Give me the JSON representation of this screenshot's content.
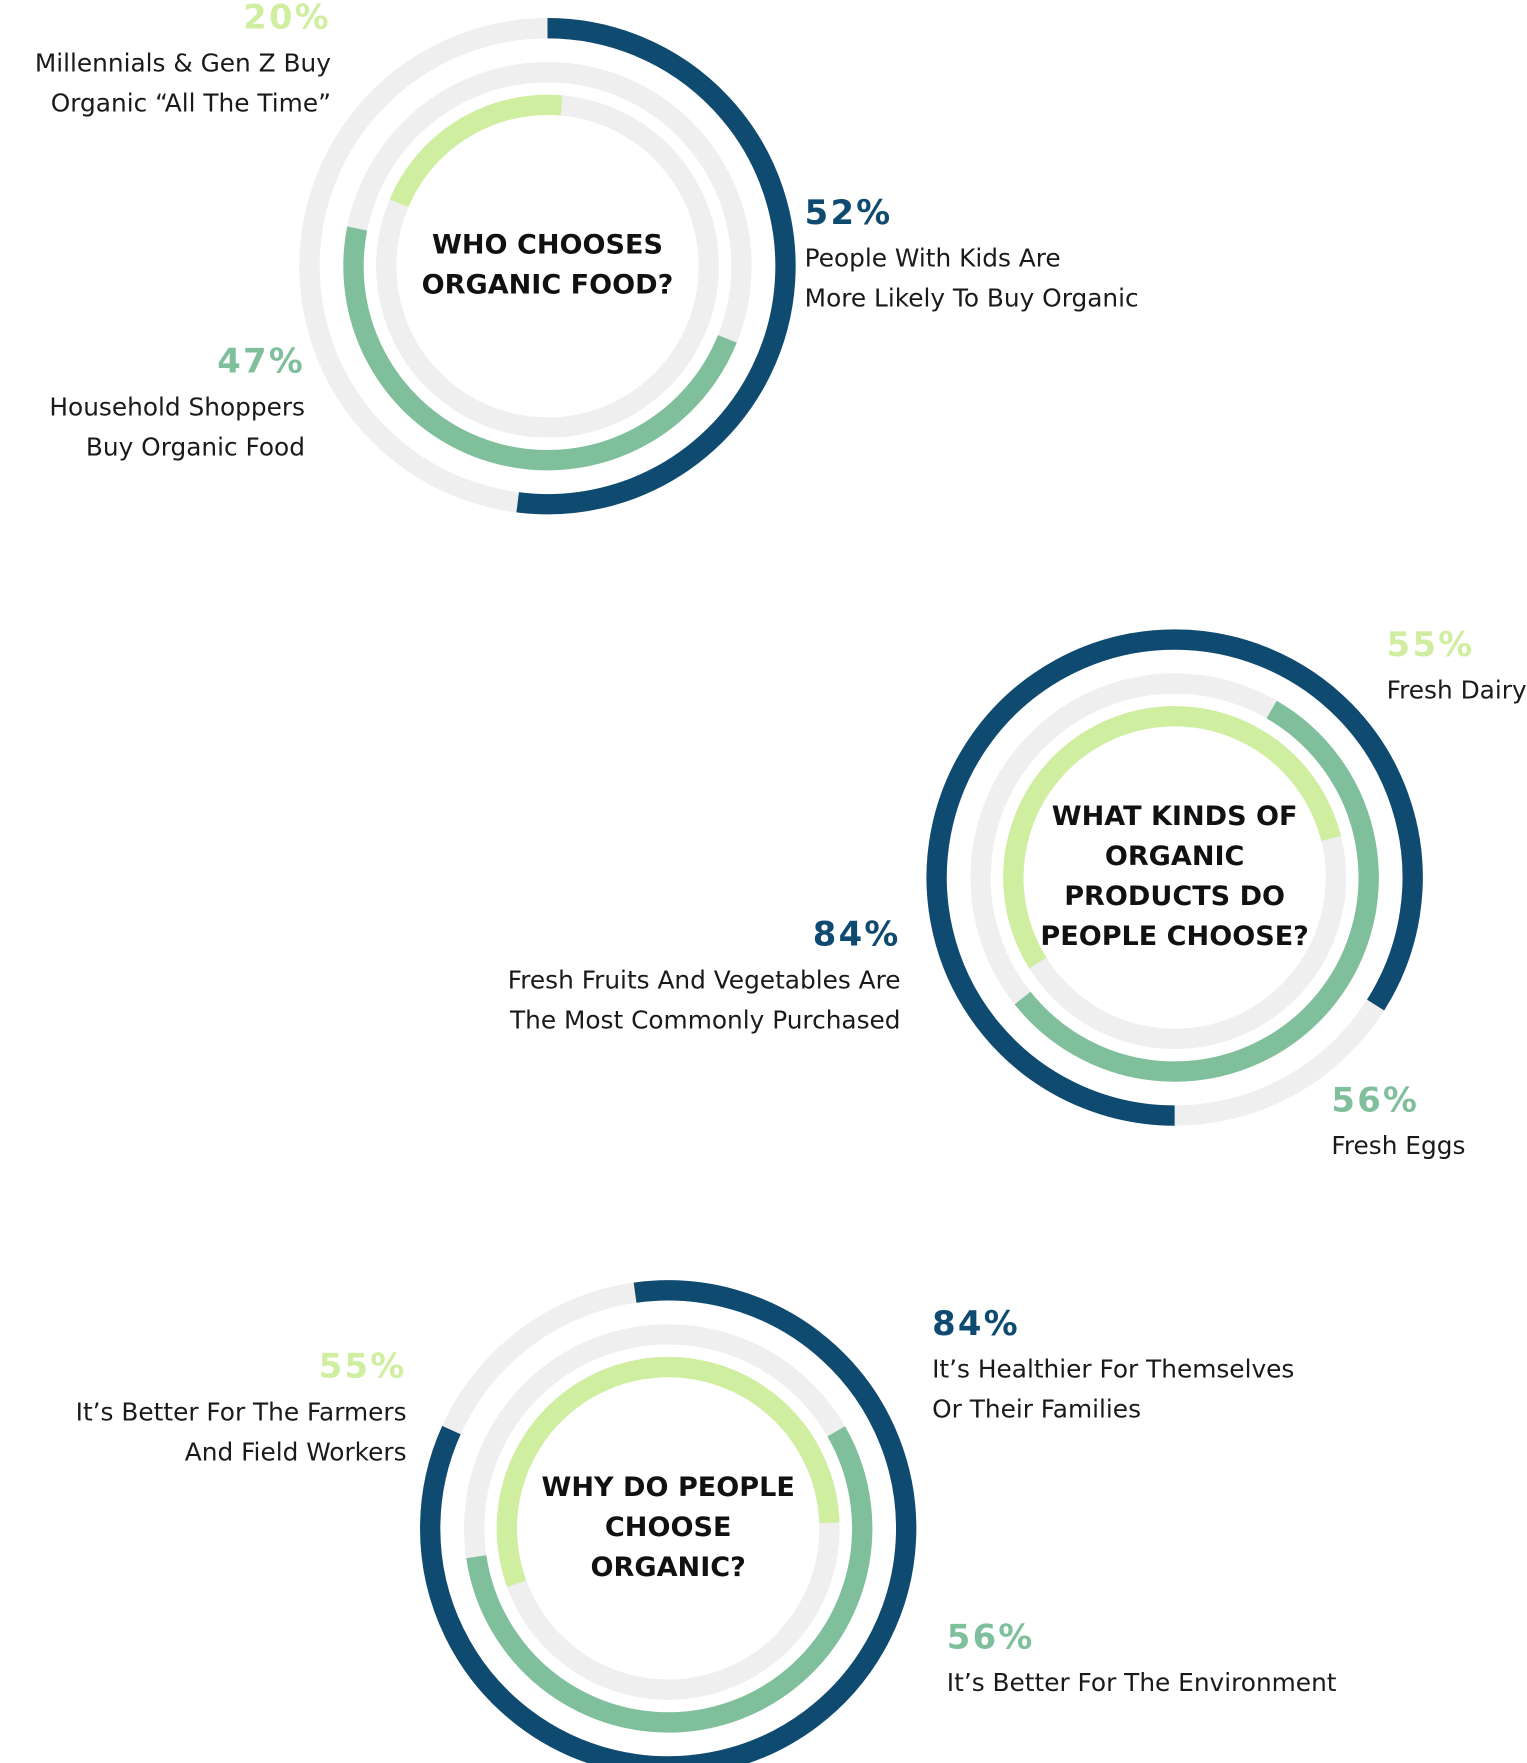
{
  "chart_data": [
    {
      "type": "radial",
      "title": [
        "WHO CHOOSES",
        "ORGANIC FOOD?"
      ],
      "ylim": [
        0,
        100
      ],
      "series": [
        {
          "name": [
            "People With Kids Are",
            "More Likely To Buy Organic"
          ],
          "color": "#0f4a70",
          "values": [
            52
          ],
          "value_labels": [
            "52%"
          ]
        },
        {
          "name": [
            "Household Shoppers",
            "Buy Organic Food"
          ],
          "color": "#7fbf9b",
          "values": [
            47
          ],
          "value_labels": [
            "47%"
          ]
        },
        {
          "name": [
            "Millennials & Gen Z Buy",
            "Organic “All The Time”"
          ],
          "color": "#cfeea0",
          "values": [
            20
          ],
          "value_labels": [
            "20%"
          ]
        }
      ]
    },
    {
      "type": "radial",
      "title": [
        "WHAT KINDS OF",
        "ORGANIC",
        "PRODUCTS DO",
        "PEOPLE CHOOSE?"
      ],
      "ylim": [
        0,
        100
      ],
      "series": [
        {
          "name": [
            "Fresh Fruits And Vegetables Are",
            "The Most Commonly Purchased"
          ],
          "color": "#0f4a70",
          "values": [
            84
          ],
          "value_labels": [
            "84%"
          ]
        },
        {
          "name": [
            "Fresh Eggs"
          ],
          "color": "#7fbf9b",
          "values": [
            56
          ],
          "value_labels": [
            "56%"
          ]
        },
        {
          "name": [
            "Fresh Dairy"
          ],
          "color": "#cfeea0",
          "values": [
            55
          ],
          "value_labels": [
            "55%"
          ]
        }
      ]
    },
    {
      "type": "radial",
      "title": [
        "WHY DO PEOPLE",
        "CHOOSE",
        "ORGANIC?"
      ],
      "ylim": [
        0,
        100
      ],
      "series": [
        {
          "name": [
            "It’s Healthier For Themselves",
            "Or Their Families"
          ],
          "color": "#0f4a70",
          "values": [
            84
          ],
          "value_labels": [
            "84%"
          ]
        },
        {
          "name": [
            "It’s Better For The Environment"
          ],
          "color": "#7fbf9b",
          "values": [
            56
          ],
          "value_labels": [
            "56%"
          ]
        },
        {
          "name": [
            "It’s Better For The Farmers",
            "And Field Workers"
          ],
          "color": "#cfeea0",
          "values": [
            55
          ],
          "value_labels": [
            "55%"
          ]
        }
      ]
    }
  ]
}
